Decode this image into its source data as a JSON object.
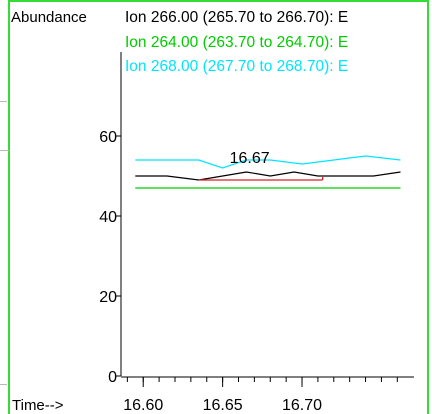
{
  "chart_data": {
    "type": "line",
    "ylabel": "Abundance",
    "xlabel": "Time-->",
    "xlim": [
      16.586,
      16.768
    ],
    "ylim": [
      0,
      83
    ],
    "yticks": [
      0,
      20,
      40,
      60
    ],
    "xticks": [
      "16.60",
      "16.65",
      "16.70"
    ],
    "xtick_values": [
      16.6,
      16.65,
      16.7
    ],
    "minor_x_step": 0.01,
    "annotation": {
      "text": "16.67",
      "x": 16.667,
      "y": 51
    },
    "series": [
      {
        "name": "Ion 266.00 (265.70 to 266.70): E",
        "color": "#000000",
        "x": [
          16.595,
          16.615,
          16.635,
          16.65,
          16.665,
          16.68,
          16.695,
          16.71,
          16.725,
          16.745,
          16.762
        ],
        "values": [
          50,
          50,
          49,
          50,
          51,
          50,
          51,
          50,
          50,
          50,
          51
        ]
      },
      {
        "name": "Ion 264.00 (263.70 to 264.70): E",
        "color": "#00cc00",
        "x": [
          16.595,
          16.762
        ],
        "values": [
          47,
          47
        ]
      },
      {
        "name": "Ion 268.00 (267.70 to 268.70): E",
        "color": "#00e5ff",
        "x": [
          16.595,
          16.615,
          16.635,
          16.65,
          16.665,
          16.68,
          16.7,
          16.72,
          16.74,
          16.762
        ],
        "values": [
          54,
          54,
          54,
          52,
          54,
          54,
          53,
          54,
          55,
          54
        ]
      }
    ],
    "highlight": {
      "color": "#dd2222",
      "x": [
        16.635,
        16.713
      ],
      "values": [
        49,
        49
      ]
    }
  }
}
